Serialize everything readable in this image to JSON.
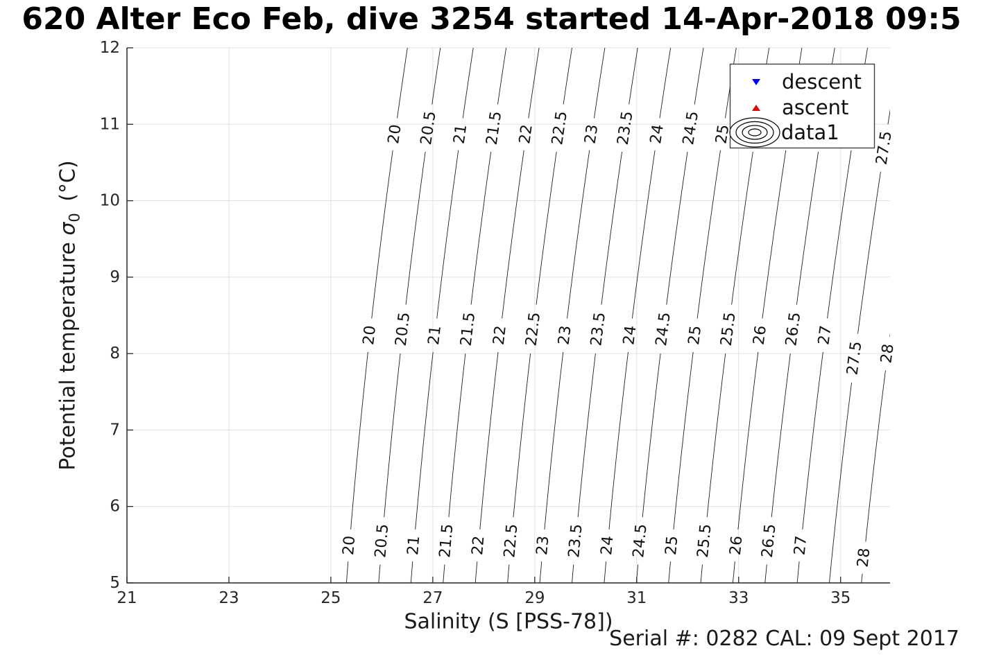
{
  "chart_data": {
    "type": "contour",
    "description": "Temperature-salinity diagram: potential density sigma_0 (kg/m^3) isopycnal contour lines (EOS-80 surface density); no profile data points are visible in the plotted range",
    "title": "620 Alter Eco Feb, dive 3254 started 14-Apr-2018 09:5",
    "xlabel": "Salinity (S [PSS-78])",
    "ylabel": {
      "prefix": "Potential temperature",
      "symbol": "σ",
      "subscript": "0",
      "suffix": "(°C)"
    },
    "x_ticks": [
      21,
      23,
      25,
      27,
      29,
      31,
      33,
      35
    ],
    "y_ticks": [
      5,
      6,
      7,
      8,
      9,
      10,
      11,
      12
    ],
    "x_range": [
      21,
      35.97
    ],
    "y_range": [
      5,
      12
    ],
    "grid": true,
    "contour_levels": [
      20,
      20.5,
      21,
      21.5,
      22,
      22.5,
      23,
      23.5,
      24,
      24.5,
      25,
      25.5,
      26,
      26.5,
      27,
      27.5,
      28
    ],
    "contour_labels": [
      {
        "level": 20,
        "at_T": [
          5.49,
          8.24,
          10.87
        ]
      },
      {
        "level": 20.5,
        "at_T": [
          5.55,
          8.32,
          10.95
        ]
      },
      {
        "level": 21,
        "at_T": [
          5.49,
          8.24,
          10.87
        ]
      },
      {
        "level": 21.5,
        "at_T": [
          5.55,
          8.32,
          10.95
        ]
      },
      {
        "level": 22,
        "at_T": [
          5.49,
          8.24,
          10.87
        ]
      },
      {
        "level": 22.5,
        "at_T": [
          5.55,
          8.32,
          10.95
        ]
      },
      {
        "level": 23,
        "at_T": [
          5.49,
          8.24,
          10.87
        ]
      },
      {
        "level": 23.5,
        "at_T": [
          5.55,
          8.32,
          10.95
        ]
      },
      {
        "level": 24,
        "at_T": [
          5.49,
          8.24,
          10.87
        ]
      },
      {
        "level": 24.5,
        "at_T": [
          5.55,
          8.32,
          10.95
        ]
      },
      {
        "level": 25,
        "at_T": [
          5.49,
          8.24,
          10.87
        ]
      },
      {
        "level": 25.5,
        "at_T": [
          5.55,
          8.32,
          10.95
        ]
      },
      {
        "level": 26,
        "at_T": [
          5.49,
          8.24,
          10.87
        ]
      },
      {
        "level": 26.5,
        "at_T": [
          5.55,
          8.32,
          10.95
        ]
      },
      {
        "level": 27,
        "at_T": [
          5.49,
          8.24,
          10.87
        ]
      },
      {
        "level": 27.5,
        "at_T": [
          7.94,
          10.69
        ]
      },
      {
        "level": 28,
        "at_T": [
          5.33,
          8.0
        ]
      }
    ],
    "legend": {
      "position": "top-right",
      "entries": [
        {
          "label": "descent",
          "marker": "triangle-down",
          "color": "#0000EE"
        },
        {
          "label": "ascent",
          "marker": "triangle-up",
          "color": "#EE0000"
        },
        {
          "label": "data1",
          "marker": "contour-rings",
          "color": "#000000"
        }
      ]
    },
    "annotation": "Serial #: 0282  CAL: 09 Sept 2017",
    "colors": {
      "contour_line": "#1c1c1c",
      "contour_label": "#111111",
      "axis": "#262626",
      "grid": "#e0e0e0",
      "descent_marker": "#0000EE",
      "ascent_marker": "#EE0000",
      "background": "#ffffff"
    }
  }
}
